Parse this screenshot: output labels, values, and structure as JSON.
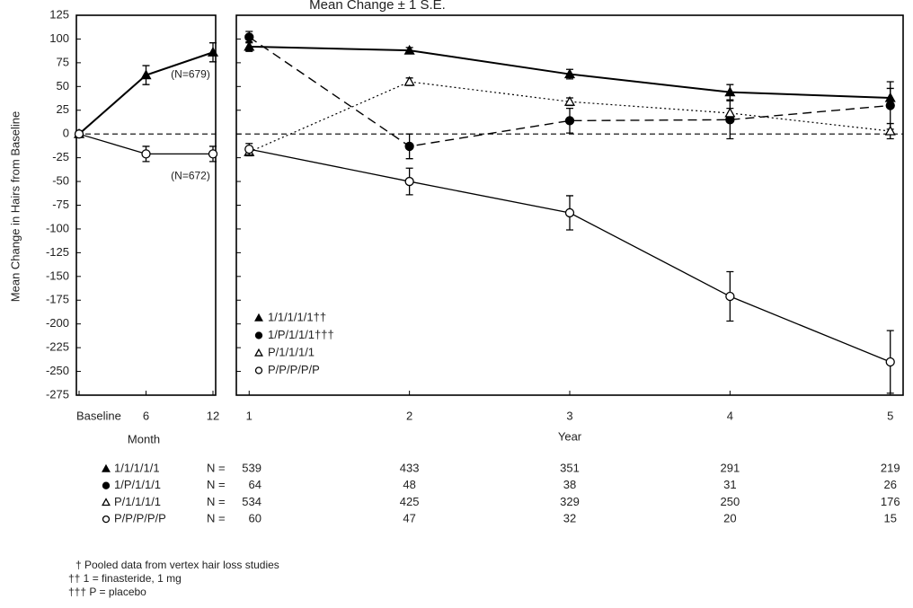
{
  "chart_data": [
    {
      "type": "line",
      "categories": [
        "Baseline",
        "6",
        "12"
      ],
      "xlabel": "Month",
      "ylabel": "Mean Change in Hairs from Baseline",
      "ylim": [
        -275,
        125
      ],
      "yticks": [
        -275,
        -250,
        -225,
        -200,
        -175,
        -150,
        -125,
        -100,
        -75,
        -50,
        -25,
        0,
        25,
        50,
        75,
        100,
        125
      ],
      "show_tick_labels": true,
      "zero_line": true,
      "series": [
        {
          "color": "#000000",
          "marker": "triangle",
          "filled": true,
          "linestyle": "solid",
          "linewidth": 2,
          "values": [
            0,
            62,
            86
          ],
          "errors": [
            0,
            10,
            10
          ],
          "annotation": "(N=679)"
        },
        {
          "color": "#000000",
          "marker": "circle",
          "filled": false,
          "linestyle": "solid",
          "linewidth": 1.3,
          "values": [
            0,
            -21,
            -21
          ],
          "errors": [
            0,
            8,
            8
          ],
          "annotation": "(N=672)"
        }
      ]
    },
    {
      "type": "line",
      "title": "Mean Change ± 1 S.E.",
      "x": [
        1,
        2,
        3,
        4,
        5
      ],
      "xlim": [
        0.92,
        5.08
      ],
      "xticks": [
        1,
        2,
        3,
        4,
        5
      ],
      "xlabel": "Year",
      "ylim": [
        -275,
        125
      ],
      "yticks": [
        -275,
        -250,
        -225,
        -200,
        -175,
        -150,
        -125,
        -100,
        -75,
        -50,
        -25,
        0,
        25,
        50,
        75,
        100,
        125
      ],
      "show_tick_labels": false,
      "zero_line": true,
      "legend": "lower left",
      "series": [
        {
          "name": "1/1/1/1/1††",
          "color": "#000000",
          "marker": "triangle",
          "filled": true,
          "linestyle": "solid",
          "linewidth": 2,
          "values": [
            92,
            88,
            63,
            44,
            38
          ],
          "errors": [
            5,
            3,
            5,
            8,
            10
          ]
        },
        {
          "name": "1/P/1/1/1†††",
          "color": "#000000",
          "marker": "circle",
          "filled": true,
          "linestyle": "dashed",
          "linewidth": 1.4,
          "values": [
            102,
            -13,
            14,
            15,
            30
          ],
          "errors": [
            6,
            13,
            13,
            20,
            25
          ]
        },
        {
          "name": "P/1/1/1/1",
          "color": "#000000",
          "marker": "triangle",
          "filled": false,
          "linestyle": "dotted",
          "linewidth": 1.2,
          "values": [
            -19,
            55,
            34,
            22,
            3
          ],
          "errors": [
            4,
            4,
            4,
            5,
            8
          ]
        },
        {
          "name": "P/P/P/P/P",
          "color": "#000000",
          "marker": "circle",
          "filled": false,
          "linestyle": "solid",
          "linewidth": 1.3,
          "values": [
            -16,
            -50,
            -83,
            -171,
            -240
          ],
          "errors": [
            6,
            14,
            18,
            26,
            33
          ]
        }
      ]
    }
  ],
  "n_table": {
    "prefix": "N =",
    "rows": [
      {
        "label": "1/1/1/1/1",
        "counts": [
          539,
          433,
          351,
          291,
          219
        ]
      },
      {
        "label": "1/P/1/1/1",
        "counts": [
          64,
          48,
          38,
          31,
          26
        ]
      },
      {
        "label": "P/1/1/1/1",
        "counts": [
          534,
          425,
          329,
          250,
          176
        ]
      },
      {
        "label": "P/P/P/P/P",
        "counts": [
          60,
          47,
          32,
          20,
          15
        ]
      }
    ]
  },
  "footnotes": [
    "† Pooled data from vertex hair loss studies",
    "†† 1 = finasteride, 1 mg",
    "††† P = placebo"
  ]
}
